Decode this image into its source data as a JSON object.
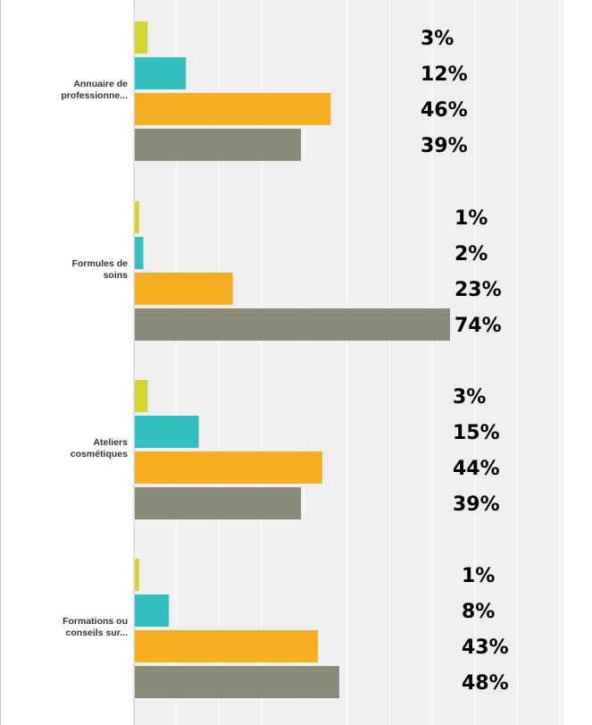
{
  "chart_data": {
    "type": "bar",
    "orientation": "horizontal",
    "grid": true,
    "xlim": [
      0,
      100
    ],
    "categories": [
      "Annuaire de professionne...",
      "Formules de soins",
      "Ateliers cosmétiques",
      "Formations ou conseils sur..."
    ],
    "category_lines": [
      [
        "Annuaire de",
        "professionne..."
      ],
      [
        "Formules de",
        "soins"
      ],
      [
        "Ateliers",
        "cosmétiques"
      ],
      [
        "Formations ou",
        "conseils sur..."
      ]
    ],
    "series": [
      {
        "color": "#d4d42e",
        "values": [
          3,
          1,
          3,
          1
        ]
      },
      {
        "color": "#33bec0",
        "values": [
          12,
          2,
          15,
          8
        ]
      },
      {
        "color": "#f5ae22",
        "values": [
          46,
          23,
          44,
          43
        ]
      },
      {
        "color": "#8a8a78",
        "values": [
          39,
          74,
          39,
          48
        ]
      }
    ],
    "value_labels": [
      [
        "3%",
        "12%",
        "46%",
        "39%"
      ],
      [
        "1%",
        "2%",
        "23%",
        "74%"
      ],
      [
        "3%",
        "15%",
        "44%",
        "39%"
      ],
      [
        "1%",
        "8%",
        "43%",
        "48%"
      ]
    ]
  },
  "colors": {
    "plot_background": "#efefef",
    "gridline": "#ffffff",
    "axis": "#c8c8c8"
  }
}
